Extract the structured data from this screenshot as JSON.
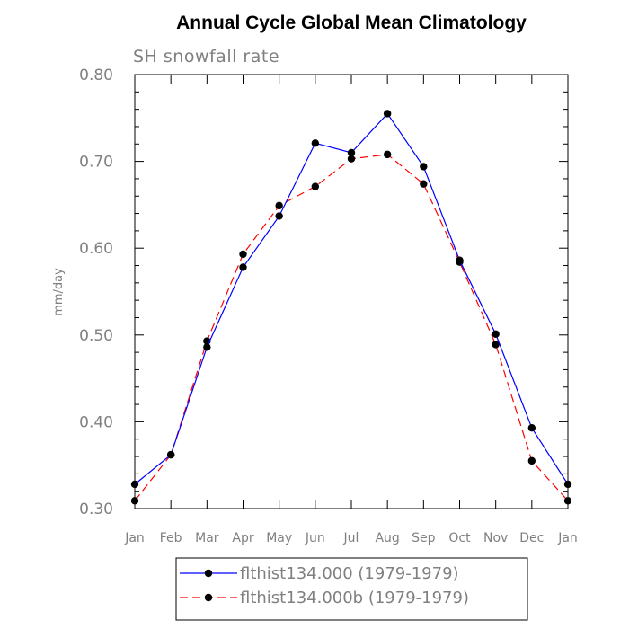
{
  "chart_data": {
    "type": "line",
    "title": "Annual Cycle Global Mean Climatology",
    "subtitle": "SH snowfall rate",
    "ylabel": "mm/day",
    "xlabel": "",
    "ylim": [
      0.3,
      0.8
    ],
    "yticks": [
      "0.30",
      "0.40",
      "0.50",
      "0.60",
      "0.70",
      "0.80"
    ],
    "categories": [
      "Jan",
      "Feb",
      "Mar",
      "Apr",
      "May",
      "Jun",
      "Jul",
      "Aug",
      "Sep",
      "Oct",
      "Nov",
      "Dec",
      "Jan"
    ],
    "series": [
      {
        "name": "flthist134.000 (1979-1979)",
        "color": "#0000ff",
        "dash": "solid",
        "values": [
          0.328,
          0.362,
          0.486,
          0.578,
          0.637,
          0.721,
          0.71,
          0.755,
          0.694,
          0.586,
          0.501,
          0.393,
          0.328
        ]
      },
      {
        "name": "flthist134.000b (1979-1979)",
        "color": "#ff0000",
        "dash": "dashed",
        "values": [
          0.309,
          0.362,
          0.493,
          0.593,
          0.649,
          0.671,
          0.703,
          0.708,
          0.674,
          0.584,
          0.489,
          0.355,
          0.309
        ]
      }
    ],
    "legend": "bottom",
    "grid": false
  }
}
